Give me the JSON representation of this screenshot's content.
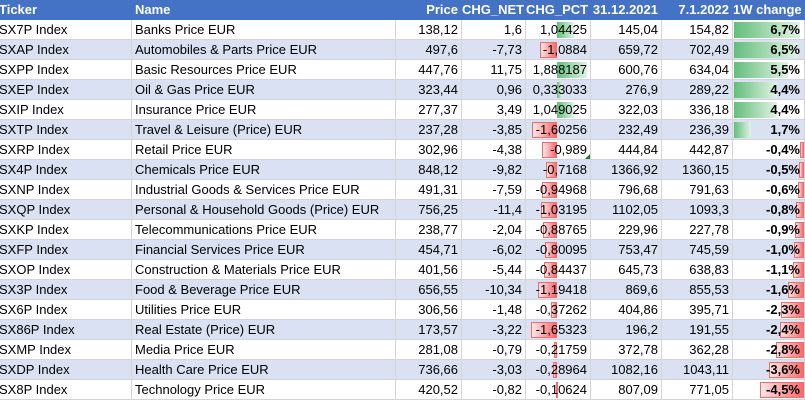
{
  "headers": [
    "Ticker",
    "Name",
    "Price",
    "CHG_NET",
    "CHG_PCT",
    "31.12.2021",
    "7.1.2022",
    "1W change"
  ],
  "colors": {
    "header_bg": "#4472c4",
    "band_bg": "#d9e1f2",
    "positive_bar": "#63be7b",
    "negative_bar": "#f8696b",
    "comment_marker": "#107c41"
  },
  "rows": [
    {
      "ticker": "SX7P Index",
      "name": "Banks Price EUR",
      "price": "138,12",
      "chg_net": "1,6",
      "chg_pct": "1,04425",
      "prev": "145,04",
      "last": "154,82",
      "change": "6,7%",
      "chg_pct_value": 1.04425,
      "change_value": 6.7
    },
    {
      "ticker": "SXAP Index",
      "name": "Automobiles & Parts Price EUR",
      "price": "497,6",
      "chg_net": "-7,73",
      "chg_pct": "-1,0884",
      "prev": "659,72",
      "last": "702,49",
      "change": "6,5%",
      "chg_pct_value": -1.0884,
      "change_value": 6.5
    },
    {
      "ticker": "SXPP Index",
      "name": "Basic Resources Price EUR",
      "price": "447,76",
      "chg_net": "11,75",
      "chg_pct": "1,888187",
      "prev": "600,76",
      "last": "634,04",
      "change": "5,5%",
      "chg_pct_value": 1.888187,
      "change_value": 5.5
    },
    {
      "ticker": "SXEP Index",
      "name": "Oil & Gas Price EUR",
      "price": "323,44",
      "chg_net": "0,96",
      "chg_pct": "0,333033",
      "prev": "276,9",
      "last": "289,22",
      "change": "4,4%",
      "chg_pct_value": 0.333033,
      "change_value": 4.4
    },
    {
      "ticker": "SXIP Index",
      "name": "Insurance Price EUR",
      "price": "277,37",
      "chg_net": "3,49",
      "chg_pct": "1,049025",
      "prev": "322,03",
      "last": "336,18",
      "change": "4,4%",
      "chg_pct_value": 1.049025,
      "change_value": 4.4
    },
    {
      "ticker": "SXTP Index",
      "name": "Travel & Leisure (Price) EUR",
      "price": "237,28",
      "chg_net": "-3,85",
      "chg_pct": "-1,60256",
      "prev": "232,49",
      "last": "236,39",
      "change": "1,7%",
      "chg_pct_value": -1.60256,
      "change_value": 1.7
    },
    {
      "ticker": "SXRP Index",
      "name": "Retail Price EUR",
      "price": "302,96",
      "chg_net": "-4,38",
      "chg_pct": "-0,989",
      "prev": "444,84",
      "last": "442,87",
      "change": "-0,4%",
      "chg_pct_value": -0.989,
      "change_value": -0.4
    },
    {
      "ticker": "SX4P Index",
      "name": "Chemicals Price EUR",
      "price": "848,12",
      "chg_net": "-9,82",
      "chg_pct": "-0,7168",
      "prev": "1366,92",
      "last": "1360,15",
      "change": "-0,5%",
      "chg_pct_value": -0.7168,
      "change_value": -0.5
    },
    {
      "ticker": "SXNP Index",
      "name": "Industrial Goods & Services Price EUR",
      "price": "491,31",
      "chg_net": "-7,59",
      "chg_pct": "-0,94968",
      "prev": "796,68",
      "last": "791,63",
      "change": "-0,6%",
      "chg_pct_value": -0.94968,
      "change_value": -0.6
    },
    {
      "ticker": "SXQP Index",
      "name": "Personal & Household Goods (Price) EUR",
      "price": "756,25",
      "chg_net": "-11,4",
      "chg_pct": "-1,03195",
      "prev": "1102,05",
      "last": "1093,3",
      "change": "-0,8%",
      "chg_pct_value": -1.03195,
      "change_value": -0.8
    },
    {
      "ticker": "SXKP Index",
      "name": "Telecommunications Price EUR",
      "price": "238,77",
      "chg_net": "-2,04",
      "chg_pct": "-0,88765",
      "prev": "229,96",
      "last": "227,78",
      "change": "-0,9%",
      "chg_pct_value": -0.88765,
      "change_value": -0.9
    },
    {
      "ticker": "SXFP Index",
      "name": "Financial Services Price EUR",
      "price": "454,71",
      "chg_net": "-6,02",
      "chg_pct": "-0,80095",
      "prev": "753,47",
      "last": "745,59",
      "change": "-1,0%",
      "chg_pct_value": -0.80095,
      "change_value": -1.0
    },
    {
      "ticker": "SXOP Index",
      "name": "Construction & Materials Price EUR",
      "price": "401,56",
      "chg_net": "-5,44",
      "chg_pct": "-0,84437",
      "prev": "645,73",
      "last": "638,83",
      "change": "-1,1%",
      "chg_pct_value": -0.84437,
      "change_value": -1.1
    },
    {
      "ticker": "SX3P Index",
      "name": "Food & Beverage Price EUR",
      "price": "656,55",
      "chg_net": "-10,34",
      "chg_pct": "-1,19418",
      "prev": "869,6",
      "last": "855,53",
      "change": "-1,6%",
      "chg_pct_value": -1.19418,
      "change_value": -1.6
    },
    {
      "ticker": "SX6P Index",
      "name": "Utilities Price EUR",
      "price": "306,56",
      "chg_net": "-1,48",
      "chg_pct": "-0,37262",
      "prev": "404,86",
      "last": "395,71",
      "change": "-2,3%",
      "chg_pct_value": -0.37262,
      "change_value": -2.3
    },
    {
      "ticker": "SX86P Index",
      "name": "Real Estate (Price) EUR",
      "price": "173,57",
      "chg_net": "-3,22",
      "chg_pct": "-1,65323",
      "prev": "196,2",
      "last": "191,55",
      "change": "-2,4%",
      "chg_pct_value": -1.65323,
      "change_value": -2.4
    },
    {
      "ticker": "SXMP Index",
      "name": "Media Price EUR",
      "price": "281,08",
      "chg_net": "-0,79",
      "chg_pct": "-0,21759",
      "prev": "372,78",
      "last": "362,28",
      "change": "-2,8%",
      "chg_pct_value": -0.21759,
      "change_value": -2.8
    },
    {
      "ticker": "SXDP Index",
      "name": "Health Care Price EUR",
      "price": "736,66",
      "chg_net": "-3,03",
      "chg_pct": "-0,28964",
      "prev": "1082,16",
      "last": "1043,11",
      "change": "-3,6%",
      "chg_pct_value": -0.28964,
      "change_value": -3.6
    },
    {
      "ticker": "SX8P Index",
      "name": "Technology Price EUR",
      "price": "420,52",
      "chg_net": "-0,82",
      "chg_pct": "-0,10624",
      "prev": "807,09",
      "last": "771,05",
      "change": "-4,5%",
      "chg_pct_value": -0.10624,
      "change_value": -4.5
    }
  ]
}
